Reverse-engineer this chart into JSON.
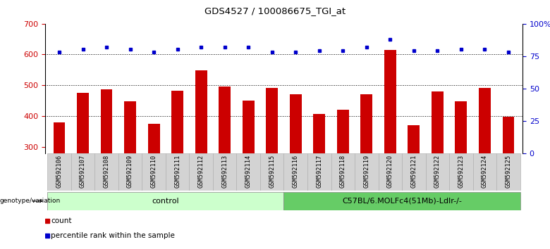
{
  "title": "GDS4527 / 100086675_TGI_at",
  "samples": [
    "GSM592106",
    "GSM592107",
    "GSM592108",
    "GSM592109",
    "GSM592110",
    "GSM592111",
    "GSM592112",
    "GSM592113",
    "GSM592114",
    "GSM592115",
    "GSM592116",
    "GSM592117",
    "GSM592118",
    "GSM592119",
    "GSM592120",
    "GSM592121",
    "GSM592122",
    "GSM592123",
    "GSM592124",
    "GSM592125"
  ],
  "bar_values": [
    380,
    475,
    488,
    448,
    375,
    483,
    548,
    497,
    450,
    492,
    470,
    408,
    420,
    470,
    615,
    370,
    480,
    448,
    492,
    398
  ],
  "percentile_values": [
    78,
    80,
    82,
    80,
    78,
    80,
    82,
    82,
    82,
    78,
    78,
    79,
    79,
    82,
    88,
    79,
    79,
    80,
    80,
    78
  ],
  "bar_color": "#cc0000",
  "dot_color": "#0000cc",
  "n_control": 10,
  "control_label": "control",
  "genotype_label": "C57BL/6.MOLFc4(51Mb)-Ldlr-/-",
  "control_color": "#ccffcc",
  "genotype_color": "#66cc66",
  "ylim_left": [
    280,
    700
  ],
  "ylim_right": [
    0,
    100
  ],
  "yticks_left": [
    300,
    400,
    500,
    600,
    700
  ],
  "yticks_right": [
    0,
    25,
    50,
    75,
    100
  ],
  "ytick_labels_right": [
    "0",
    "25",
    "50",
    "75",
    "100%"
  ],
  "grid_values": [
    400,
    500,
    600
  ],
  "legend_count_color": "#cc0000",
  "legend_dot_color": "#0000cc",
  "legend_count_label": "count",
  "legend_percentile_label": "percentile rank within the sample",
  "genotype_label_left": "genotype/variation",
  "bar_width": 0.5,
  "bg_color": "#ffffff",
  "sample_box_color": "#d3d3d3",
  "sample_box_border": "#aaaaaa"
}
